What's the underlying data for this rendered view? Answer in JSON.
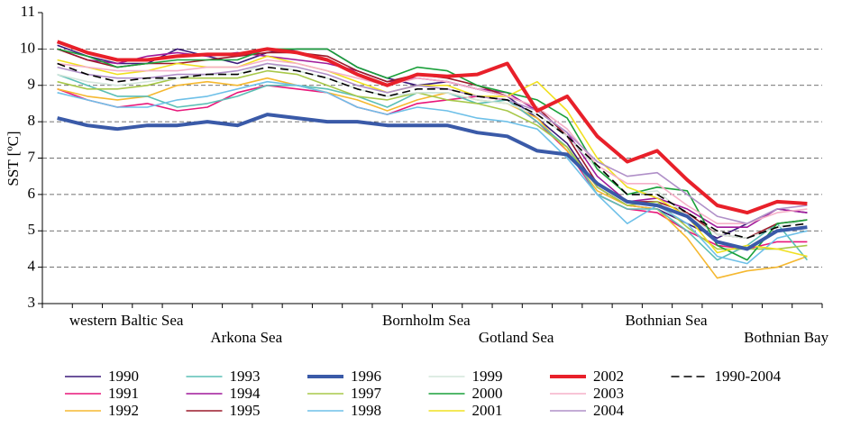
{
  "chart_data": {
    "type": "line",
    "ylabel": "SST [ºC]",
    "categories": [
      null,
      null,
      "western Baltic Sea",
      null,
      null,
      null,
      "Arkona Sea",
      null,
      null,
      null,
      null,
      null,
      "Bornholm Sea",
      null,
      null,
      "Gotland Sea",
      null,
      null,
      null,
      null,
      "Bothnian Sea",
      null,
      null,
      null,
      "Bothnian Bay",
      null
    ],
    "ylim": [
      3,
      11
    ],
    "yticks": [
      3,
      4,
      5,
      6,
      7,
      8,
      9,
      10,
      11
    ],
    "grid": true,
    "series": [
      {
        "name": "1990",
        "color": "#3b1a7a",
        "values": [
          10.1,
          9.8,
          9.6,
          9.6,
          10.0,
          9.8,
          9.6,
          9.9,
          10.0,
          10.0,
          9.5,
          9.2,
          9.0,
          9.1,
          8.9,
          8.7,
          8.1,
          7.4,
          6.2,
          5.7,
          5.6,
          5.2,
          4.8,
          5.2,
          5.6,
          5.5
        ]
      },
      {
        "name": "1991",
        "color": "#e8177a",
        "values": [
          8.9,
          8.6,
          8.4,
          8.5,
          8.3,
          8.4,
          8.8,
          9.0,
          8.9,
          8.8,
          8.4,
          8.2,
          8.5,
          8.6,
          8.7,
          8.6,
          8.0,
          7.2,
          6.0,
          5.6,
          5.5,
          5.0,
          4.6,
          4.5,
          4.7,
          4.7
        ]
      },
      {
        "name": "1992",
        "color": "#f5b830",
        "values": [
          8.9,
          8.7,
          8.6,
          8.7,
          9.0,
          9.1,
          9.0,
          9.2,
          9.0,
          8.8,
          8.6,
          8.3,
          8.6,
          8.8,
          8.6,
          8.5,
          8.1,
          7.2,
          6.1,
          5.7,
          5.6,
          4.8,
          3.7,
          3.9,
          4.0,
          4.3
        ]
      },
      {
        "name": "1993",
        "color": "#5bbfb5",
        "values": [
          9.3,
          9.0,
          8.7,
          8.7,
          8.4,
          8.5,
          8.7,
          9.0,
          9.0,
          8.9,
          8.7,
          8.4,
          8.8,
          8.8,
          8.5,
          8.6,
          8.0,
          7.3,
          6.0,
          5.6,
          5.6,
          5.0,
          4.2,
          4.6,
          5.2,
          4.2
        ]
      },
      {
        "name": "1994",
        "color": "#a0199a",
        "values": [
          10.0,
          9.7,
          9.6,
          9.8,
          9.9,
          9.8,
          9.9,
          9.8,
          9.7,
          9.6,
          9.4,
          9.1,
          9.2,
          9.1,
          8.9,
          8.8,
          8.3,
          7.7,
          6.5,
          5.8,
          5.9,
          5.6,
          5.1,
          5.1,
          5.6,
          5.5
        ]
      },
      {
        "name": "1995",
        "color": "#9b1a2a",
        "values": [
          10.0,
          9.7,
          9.5,
          9.6,
          9.6,
          9.7,
          9.8,
          9.9,
          9.9,
          9.8,
          9.4,
          9.1,
          9.3,
          9.2,
          9.0,
          8.7,
          8.4,
          7.6,
          6.3,
          5.8,
          5.8,
          5.5,
          4.9,
          4.8,
          5.2,
          5.3
        ]
      },
      {
        "name": "1996",
        "color": "#3a5aa8",
        "width": 4,
        "values": [
          8.1,
          7.9,
          7.8,
          7.9,
          7.9,
          8.0,
          7.9,
          8.2,
          8.1,
          8.0,
          8.0,
          7.9,
          7.9,
          7.9,
          7.7,
          7.6,
          7.2,
          7.1,
          6.3,
          5.8,
          5.7,
          5.4,
          4.7,
          4.5,
          5.0,
          5.1
        ]
      },
      {
        "name": "1997",
        "color": "#a8c84a",
        "values": [
          9.1,
          8.9,
          8.9,
          9.0,
          9.2,
          9.2,
          9.2,
          9.4,
          9.3,
          9.0,
          8.7,
          8.6,
          8.8,
          8.6,
          8.5,
          8.3,
          7.9,
          7.3,
          6.2,
          5.7,
          5.8,
          5.1,
          4.5,
          4.5,
          4.5,
          4.6
        ]
      },
      {
        "name": "1998",
        "color": "#6ec0e8",
        "values": [
          8.8,
          8.6,
          8.4,
          8.4,
          8.6,
          8.7,
          8.9,
          9.1,
          9.0,
          8.8,
          8.4,
          8.2,
          8.4,
          8.3,
          8.1,
          8.0,
          7.8,
          7.0,
          6.0,
          5.2,
          5.7,
          5.2,
          4.3,
          4.1,
          4.8,
          5.0
        ]
      },
      {
        "name": "1999",
        "color": "#d4e6dc",
        "values": [
          9.3,
          9.1,
          9.0,
          9.1,
          9.2,
          9.3,
          9.3,
          9.6,
          9.4,
          9.2,
          8.9,
          8.7,
          8.8,
          8.8,
          8.6,
          8.5,
          8.2,
          7.6,
          6.7,
          6.0,
          6.1,
          5.4,
          4.9,
          4.8,
          5.1,
          5.3
        ]
      },
      {
        "name": "2000",
        "color": "#1aa03a",
        "values": [
          10.0,
          9.8,
          9.5,
          9.6,
          9.7,
          9.7,
          9.7,
          10.0,
          10.0,
          10.0,
          9.5,
          9.2,
          9.5,
          9.4,
          9.0,
          8.8,
          8.6,
          8.1,
          6.7,
          6.0,
          6.2,
          6.1,
          4.6,
          4.2,
          5.2,
          5.3
        ]
      },
      {
        "name": "2001",
        "color": "#f0e020",
        "values": [
          9.7,
          9.5,
          9.3,
          9.4,
          9.6,
          9.5,
          9.5,
          9.8,
          9.6,
          9.4,
          9.1,
          8.8,
          9.0,
          9.0,
          8.7,
          8.7,
          9.1,
          8.3,
          7.0,
          6.2,
          5.9,
          5.4,
          4.4,
          4.6,
          4.5,
          4.3
        ]
      },
      {
        "name": "2002",
        "color": "#e8202a",
        "width": 4,
        "values": [
          10.2,
          9.9,
          9.7,
          9.7,
          9.8,
          9.85,
          9.85,
          10.0,
          9.9,
          9.7,
          9.3,
          9.0,
          9.3,
          9.25,
          9.3,
          9.6,
          8.3,
          8.7,
          7.6,
          6.9,
          7.2,
          6.4,
          5.7,
          5.5,
          5.8,
          5.75
        ]
      },
      {
        "name": "2003",
        "color": "#f5b0c8",
        "values": [
          9.6,
          9.5,
          9.4,
          9.4,
          9.4,
          9.5,
          9.5,
          9.7,
          9.6,
          9.4,
          9.2,
          9.0,
          9.2,
          9.1,
          8.9,
          8.7,
          8.4,
          7.8,
          6.8,
          6.3,
          6.3,
          5.7,
          5.2,
          5.2,
          5.5,
          5.6
        ]
      },
      {
        "name": "2004",
        "color": "#b090c8",
        "values": [
          9.5,
          9.3,
          9.2,
          9.2,
          9.3,
          9.3,
          9.4,
          9.6,
          9.5,
          9.3,
          9.0,
          8.8,
          9.0,
          8.9,
          8.7,
          8.6,
          8.3,
          7.7,
          6.9,
          6.5,
          6.6,
          6.0,
          5.4,
          5.2,
          5.6,
          5.7
        ]
      },
      {
        "name": "1990-2004",
        "color": "#000000",
        "dash": true,
        "values": [
          9.6,
          9.3,
          9.1,
          9.2,
          9.2,
          9.3,
          9.3,
          9.5,
          9.4,
          9.2,
          8.9,
          8.7,
          8.9,
          8.9,
          8.7,
          8.6,
          8.2,
          7.6,
          6.8,
          6.0,
          6.0,
          5.5,
          5.0,
          4.8,
          5.1,
          5.2
        ]
      }
    ]
  }
}
